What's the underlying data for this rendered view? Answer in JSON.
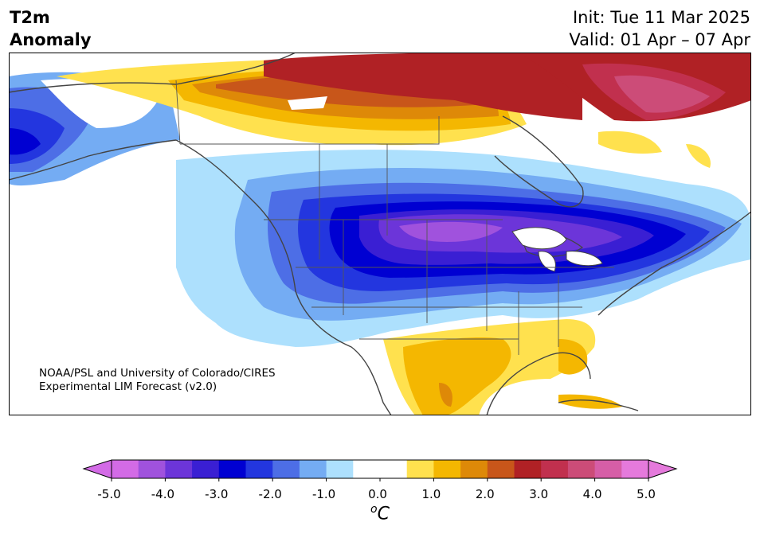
{
  "header": {
    "left_line1": "T2m",
    "left_line2": "Anomaly",
    "right_line1": "Init: Tue 11 Mar 2025",
    "right_line2": "Valid: 01 Apr – 07 Apr"
  },
  "credit": {
    "line1": "NOAA/PSL and University of Colorado/CIRES",
    "line2": "Experimental LIM Forecast (v2.0)"
  },
  "colorbar": {
    "unit_sup": "o",
    "unit": "C",
    "ticks": [
      "-5.0",
      "-4.0",
      "-3.0",
      "-2.0",
      "-1.0",
      "0.0",
      "1.0",
      "2.0",
      "3.0",
      "4.0",
      "5.0"
    ],
    "colors": [
      "#d36be6",
      "#a052dd",
      "#6c35d9",
      "#3a1fd3",
      "#0000d2",
      "#2336df",
      "#4d6ee6",
      "#74acf3",
      "#ade0fd",
      "#ffffff",
      "#ffffff",
      "#ffe14e",
      "#f4b701",
      "#de8908",
      "#c8561a",
      "#b02125",
      "#c1304e",
      "#cc4c78",
      "#d65ea7",
      "#e57adc"
    ],
    "extend_low_color": "#d36be6",
    "extend_high_color": "#e57adc"
  },
  "map_layers": {
    "ocean": "#ffffff",
    "coast": "#444444"
  }
}
